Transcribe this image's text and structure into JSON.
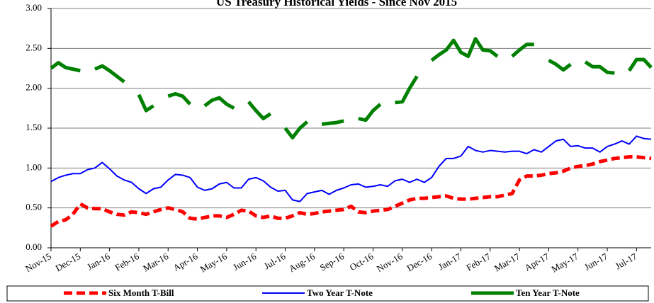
{
  "chart_data": {
    "type": "line",
    "title": "US Treasury Historical Yields - Since Nov 2015",
    "x": [
      0,
      0.25,
      0.5,
      0.75,
      1,
      1.25,
      1.5,
      1.75,
      2,
      2.25,
      2.5,
      2.75,
      3,
      3.25,
      3.5,
      3.75,
      4,
      4.25,
      4.5,
      4.75,
      5,
      5.25,
      5.5,
      5.75,
      6,
      6.25,
      6.5,
      6.75,
      7,
      7.25,
      7.5,
      7.75,
      8,
      8.25,
      8.5,
      8.75,
      9,
      9.25,
      9.5,
      9.75,
      10,
      10.25,
      10.5,
      10.75,
      11,
      11.25,
      11.5,
      11.75,
      12,
      12.25,
      12.5,
      12.75,
      13,
      13.25,
      13.5,
      13.75,
      14,
      14.25,
      14.5,
      14.75,
      15,
      15.25,
      15.5,
      15.75,
      16,
      16.25,
      16.5,
      16.75,
      17,
      17.25,
      17.5,
      17.75,
      18,
      18.25,
      18.5,
      18.75,
      19,
      19.25,
      19.5,
      19.75,
      20,
      20.25,
      20.5
    ],
    "series": [
      {
        "name": "Six Month T-Bill",
        "color": "#ff0000",
        "dashed": true,
        "width": 5,
        "values": [
          0.27,
          0.33,
          0.35,
          0.42,
          0.55,
          0.5,
          0.49,
          0.49,
          0.45,
          0.42,
          0.41,
          0.45,
          0.44,
          0.42,
          0.45,
          0.48,
          0.5,
          0.48,
          0.45,
          0.37,
          0.36,
          0.38,
          0.4,
          0.4,
          0.38,
          0.42,
          0.47,
          0.46,
          0.4,
          0.38,
          0.4,
          0.37,
          0.37,
          0.4,
          0.44,
          0.42,
          0.43,
          0.45,
          0.46,
          0.47,
          0.48,
          0.52,
          0.45,
          0.44,
          0.46,
          0.47,
          0.48,
          0.52,
          0.56,
          0.6,
          0.62,
          0.62,
          0.63,
          0.64,
          0.65,
          0.62,
          0.61,
          0.61,
          0.62,
          0.63,
          0.64,
          0.64,
          0.66,
          0.68,
          0.85,
          0.9,
          0.9,
          0.91,
          0.93,
          0.94,
          0.96,
          1.0,
          1.02,
          1.03,
          1.05,
          1.08,
          1.1,
          1.12,
          1.13,
          1.14,
          1.14,
          1.13,
          1.12
        ]
      },
      {
        "name": "Two Year T-Note",
        "color": "#0000ff",
        "dashed": false,
        "width": 2,
        "values": [
          0.83,
          0.88,
          0.91,
          0.93,
          0.93,
          0.98,
          1.0,
          1.07,
          0.99,
          0.9,
          0.85,
          0.82,
          0.74,
          0.68,
          0.74,
          0.76,
          0.85,
          0.92,
          0.91,
          0.88,
          0.76,
          0.72,
          0.74,
          0.8,
          0.82,
          0.75,
          0.75,
          0.86,
          0.88,
          0.84,
          0.76,
          0.71,
          0.72,
          0.6,
          0.58,
          0.68,
          0.7,
          0.72,
          0.67,
          0.72,
          0.75,
          0.79,
          0.8,
          0.76,
          0.77,
          0.79,
          0.77,
          0.84,
          0.86,
          0.82,
          0.86,
          0.82,
          0.88,
          1.02,
          1.12,
          1.12,
          1.15,
          1.27,
          1.22,
          1.2,
          1.22,
          1.21,
          1.2,
          1.21,
          1.21,
          1.18,
          1.23,
          1.2,
          1.27,
          1.34,
          1.36,
          1.27,
          1.28,
          1.25,
          1.25,
          1.2,
          1.27,
          1.3,
          1.34,
          1.3,
          1.4,
          1.37,
          1.36
        ]
      },
      {
        "name": "Ten Year T-Note",
        "color": "#008000",
        "dashed": false,
        "width": 5,
        "values": [
          2.25,
          2.32,
          2.26,
          2.24,
          2.22,
          null,
          2.24,
          2.28,
          2.22,
          2.15,
          2.08,
          null,
          1.92,
          1.72,
          1.78,
          null,
          1.9,
          1.93,
          1.9,
          1.8,
          null,
          1.78,
          1.85,
          1.88,
          1.8,
          1.75,
          null,
          1.83,
          1.72,
          1.62,
          1.68,
          null,
          1.5,
          1.38,
          1.5,
          1.58,
          null,
          1.55,
          1.56,
          1.57,
          1.59,
          null,
          1.62,
          1.6,
          1.72,
          1.8,
          null,
          1.82,
          1.83,
          2.0,
          2.15,
          null,
          2.35,
          2.42,
          2.48,
          2.6,
          2.45,
          2.4,
          2.62,
          2.48,
          2.47,
          2.4,
          null,
          2.4,
          2.48,
          2.55,
          2.55,
          null,
          2.35,
          2.3,
          2.23,
          2.3,
          null,
          2.33,
          2.27,
          2.27,
          2.2,
          2.19,
          null,
          2.22,
          2.36,
          2.36,
          2.26
        ]
      }
    ],
    "xlim": [
      0,
      20.5
    ],
    "xticks": [
      {
        "value": 0,
        "label": "Nov-15"
      },
      {
        "value": 1,
        "label": "Dec-15"
      },
      {
        "value": 2,
        "label": "Jan-16"
      },
      {
        "value": 3,
        "label": "Feb-16"
      },
      {
        "value": 4,
        "label": "Mar-16"
      },
      {
        "value": 5,
        "label": "Apr-16"
      },
      {
        "value": 6,
        "label": "May-16"
      },
      {
        "value": 7,
        "label": "Jun-16"
      },
      {
        "value": 8,
        "label": "Jul-16"
      },
      {
        "value": 9,
        "label": "Aug-16"
      },
      {
        "value": 10,
        "label": "Sep-16"
      },
      {
        "value": 11,
        "label": "Oct-16"
      },
      {
        "value": 12,
        "label": "Nov-16"
      },
      {
        "value": 13,
        "label": "Dec-16"
      },
      {
        "value": 14,
        "label": "Jan-17"
      },
      {
        "value": 15,
        "label": "Feb-17"
      },
      {
        "value": 16,
        "label": "Mar-17"
      },
      {
        "value": 17,
        "label": "Apr-17"
      },
      {
        "value": 18,
        "label": "May-17"
      },
      {
        "value": 19,
        "label": "Jun-17"
      },
      {
        "value": 20,
        "label": "Jul-17"
      }
    ],
    "ylim": [
      0,
      3
    ],
    "yticks": [
      {
        "value": 0,
        "label": "0.00"
      },
      {
        "value": 0.5,
        "label": "0.50"
      },
      {
        "value": 1,
        "label": "1.00"
      },
      {
        "value": 1.5,
        "label": "1.50"
      },
      {
        "value": 2,
        "label": "2.00"
      },
      {
        "value": 2.5,
        "label": "2.50"
      },
      {
        "value": 3,
        "label": "3.00"
      }
    ],
    "grid": true,
    "legend": "bottom"
  }
}
